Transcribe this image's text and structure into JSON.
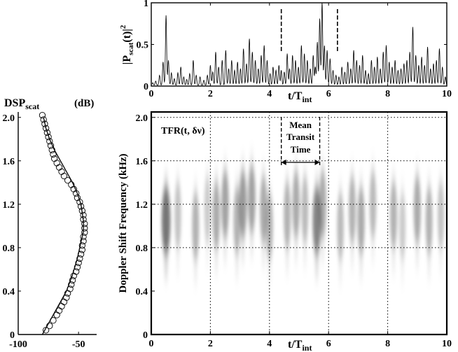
{
  "chart_data": [
    {
      "id": "power_trace",
      "type": "line",
      "ylabel_main": "|P",
      "ylabel_sub": "scat",
      "ylabel_tail": "(t)|",
      "ylabel_sup": "2",
      "xlabel_main": "t/T",
      "xlabel_sub": "int",
      "xlim": [
        0,
        10
      ],
      "ylim": [
        0,
        1
      ],
      "xticks": [
        "0",
        "2",
        "4",
        "6",
        "8",
        "10"
      ],
      "yticks": [
        "0",
        "0.5",
        "1"
      ],
      "markers_x": [
        4.4,
        6.3
      ],
      "peaks": [
        [
          0.05,
          0.03
        ],
        [
          0.15,
          0.05
        ],
        [
          0.28,
          0.12
        ],
        [
          0.4,
          0.28
        ],
        [
          0.5,
          0.84
        ],
        [
          0.58,
          0.3
        ],
        [
          0.68,
          0.15
        ],
        [
          0.78,
          0.08
        ],
        [
          0.9,
          0.15
        ],
        [
          1.0,
          0.22
        ],
        [
          1.1,
          0.1
        ],
        [
          1.2,
          0.07
        ],
        [
          1.3,
          0.14
        ],
        [
          1.42,
          0.3
        ],
        [
          1.52,
          0.12
        ],
        [
          1.65,
          0.1
        ],
        [
          1.78,
          0.06
        ],
        [
          1.9,
          0.12
        ],
        [
          2.0,
          0.24
        ],
        [
          2.08,
          0.16
        ],
        [
          2.18,
          0.4
        ],
        [
          2.28,
          0.22
        ],
        [
          2.4,
          0.3
        ],
        [
          2.52,
          0.42
        ],
        [
          2.62,
          0.2
        ],
        [
          2.72,
          0.3
        ],
        [
          2.82,
          0.18
        ],
        [
          2.92,
          0.28
        ],
        [
          3.02,
          0.2
        ],
        [
          3.12,
          0.44
        ],
        [
          3.22,
          0.26
        ],
        [
          3.32,
          0.56
        ],
        [
          3.42,
          0.4
        ],
        [
          3.52,
          0.3
        ],
        [
          3.62,
          0.2
        ],
        [
          3.72,
          0.36
        ],
        [
          3.82,
          0.48
        ],
        [
          3.92,
          0.3
        ],
        [
          4.02,
          0.14
        ],
        [
          4.12,
          0.22
        ],
        [
          4.22,
          0.18
        ],
        [
          4.32,
          0.24
        ],
        [
          4.4,
          0.18
        ],
        [
          4.5,
          0.16
        ],
        [
          4.6,
          0.38
        ],
        [
          4.68,
          0.2
        ],
        [
          4.78,
          0.36
        ],
        [
          4.88,
          0.3
        ],
        [
          4.98,
          0.22
        ],
        [
          5.08,
          0.48
        ],
        [
          5.18,
          0.38
        ],
        [
          5.28,
          0.3
        ],
        [
          5.38,
          0.2
        ],
        [
          5.48,
          0.36
        ],
        [
          5.55,
          0.22
        ],
        [
          5.62,
          0.52
        ],
        [
          5.7,
          0.8
        ],
        [
          5.78,
          1.0
        ],
        [
          5.86,
          0.48
        ],
        [
          5.95,
          0.42
        ],
        [
          6.05,
          0.32
        ],
        [
          6.15,
          0.18
        ],
        [
          6.25,
          0.12
        ],
        [
          6.35,
          0.1
        ],
        [
          6.45,
          0.22
        ],
        [
          6.55,
          0.16
        ],
        [
          6.65,
          0.28
        ],
        [
          6.75,
          0.2
        ],
        [
          6.85,
          0.42
        ],
        [
          6.95,
          0.3
        ],
        [
          7.05,
          0.24
        ],
        [
          7.15,
          0.36
        ],
        [
          7.25,
          0.18
        ],
        [
          7.35,
          0.14
        ],
        [
          7.45,
          0.3
        ],
        [
          7.55,
          0.22
        ],
        [
          7.65,
          0.34
        ],
        [
          7.75,
          0.2
        ],
        [
          7.85,
          0.4
        ],
        [
          7.95,
          0.48
        ],
        [
          8.05,
          0.28
        ],
        [
          8.15,
          0.22
        ],
        [
          8.25,
          0.3
        ],
        [
          8.35,
          0.18
        ],
        [
          8.45,
          0.2
        ],
        [
          8.55,
          0.26
        ],
        [
          8.65,
          0.3
        ],
        [
          8.75,
          0.4
        ],
        [
          8.85,
          0.7
        ],
        [
          8.95,
          0.36
        ],
        [
          9.05,
          0.24
        ],
        [
          9.15,
          0.34
        ],
        [
          9.25,
          0.24
        ],
        [
          9.35,
          0.46
        ],
        [
          9.45,
          0.2
        ],
        [
          9.55,
          0.26
        ],
        [
          9.65,
          0.3
        ],
        [
          9.75,
          0.44
        ],
        [
          9.85,
          0.22
        ],
        [
          9.95,
          0.1
        ]
      ]
    },
    {
      "id": "doppler_spectrum",
      "type": "line",
      "title_main": "DSP",
      "title_sub": "scat",
      "title_unit": "(dB)",
      "xlim": [
        -100,
        -35
      ],
      "ylim": [
        0,
        2.05
      ],
      "xticks": [
        "-100",
        "-50"
      ],
      "xtick_values": [
        -100,
        -50
      ],
      "yticks": [
        "0",
        "0.4",
        "0.8",
        "1.2",
        "1.6",
        "2.0"
      ],
      "ytick_values": [
        0,
        0.4,
        0.8,
        1.2,
        1.6,
        2.0
      ],
      "fit_curve": [
        [
          -80,
          0.0
        ],
        [
          -75,
          0.1
        ],
        [
          -70,
          0.2
        ],
        [
          -65,
          0.3
        ],
        [
          -60,
          0.4
        ],
        [
          -55,
          0.55
        ],
        [
          -51,
          0.7
        ],
        [
          -48,
          0.85
        ],
        [
          -46,
          0.95
        ],
        [
          -46,
          1.05
        ],
        [
          -48,
          1.2
        ],
        [
          -51,
          1.3
        ],
        [
          -55,
          1.4
        ],
        [
          -60,
          1.5
        ],
        [
          -65,
          1.6
        ],
        [
          -70,
          1.7
        ],
        [
          -74,
          1.8
        ],
        [
          -77,
          1.9
        ],
        [
          -79,
          2.0
        ]
      ],
      "points": [
        [
          -77,
          0.04
        ],
        [
          -74,
          0.08
        ],
        [
          -71,
          0.13
        ],
        [
          -68,
          0.18
        ],
        [
          -66,
          0.22
        ],
        [
          -64,
          0.26
        ],
        [
          -62,
          0.3
        ],
        [
          -60,
          0.34
        ],
        [
          -59,
          0.38
        ],
        [
          -57,
          0.42
        ],
        [
          -56,
          0.46
        ],
        [
          -55,
          0.5
        ],
        [
          -54,
          0.54
        ],
        [
          -52,
          0.58
        ],
        [
          -51,
          0.62
        ],
        [
          -50,
          0.66
        ],
        [
          -49,
          0.7
        ],
        [
          -48,
          0.74
        ],
        [
          -47,
          0.78
        ],
        [
          -47,
          0.82
        ],
        [
          -46,
          0.86
        ],
        [
          -46,
          0.9
        ],
        [
          -45,
          0.94
        ],
        [
          -45,
          0.98
        ],
        [
          -45,
          1.02
        ],
        [
          -46,
          1.06
        ],
        [
          -46,
          1.1
        ],
        [
          -47,
          1.14
        ],
        [
          -48,
          1.18
        ],
        [
          -49,
          1.22
        ],
        [
          -51,
          1.26
        ],
        [
          -52,
          1.3
        ],
        [
          -54,
          1.34
        ],
        [
          -56,
          1.38
        ],
        [
          -59,
          1.42
        ],
        [
          -62,
          1.46
        ],
        [
          -64,
          1.5
        ],
        [
          -66,
          1.54
        ],
        [
          -68,
          1.58
        ],
        [
          -70,
          1.62
        ],
        [
          -71,
          1.66
        ],
        [
          -72,
          1.7
        ],
        [
          -73,
          1.74
        ],
        [
          -74,
          1.78
        ],
        [
          -75,
          1.82
        ],
        [
          -76,
          1.86
        ],
        [
          -77,
          1.9
        ],
        [
          -78,
          1.94
        ],
        [
          -79,
          1.98
        ],
        [
          -80,
          2.02
        ]
      ]
    },
    {
      "id": "tfr_map",
      "type": "heatmap",
      "ylabel": "Doppler Shift Frequency (kHz)",
      "xlabel_main": "t/T",
      "xlabel_sub": "int",
      "inset_label": "TFR(t, δν)",
      "annotation": [
        "Mean",
        "Transit",
        "Time"
      ],
      "annotation_span": [
        4.4,
        5.7
      ],
      "xlim": [
        0,
        10
      ],
      "ylim": [
        0,
        2.05
      ],
      "xticks": [
        "0",
        "2",
        "4",
        "6",
        "8",
        "10"
      ],
      "xtick_values": [
        0,
        2,
        4,
        6,
        8,
        10
      ],
      "yticks": [
        "0",
        "0.4",
        "0.8",
        "1.2",
        "1.6",
        "2.0"
      ],
      "ytick_values": [
        0,
        0.4,
        0.8,
        1.2,
        1.6,
        2.0
      ],
      "grid_x": [
        2,
        4,
        6,
        8
      ],
      "grid_y": [
        0.8,
        1.2,
        1.6,
        2.0
      ],
      "blobs": [
        [
          0.5,
          1.05,
          0.85
        ],
        [
          0.9,
          1.1,
          0.35
        ],
        [
          1.5,
          1.0,
          0.45
        ],
        [
          1.9,
          1.15,
          0.3
        ],
        [
          2.2,
          1.1,
          0.5
        ],
        [
          2.5,
          1.2,
          0.55
        ],
        [
          2.9,
          1.05,
          0.45
        ],
        [
          3.1,
          1.2,
          0.6
        ],
        [
          3.4,
          1.25,
          0.55
        ],
        [
          3.8,
          1.15,
          0.5
        ],
        [
          4.0,
          1.0,
          0.45
        ],
        [
          4.6,
          1.1,
          0.45
        ],
        [
          4.9,
          1.2,
          0.5
        ],
        [
          5.2,
          1.15,
          0.4
        ],
        [
          5.6,
          1.05,
          0.75
        ],
        [
          5.8,
          1.2,
          0.5
        ],
        [
          6.4,
          1.0,
          0.4
        ],
        [
          6.8,
          1.15,
          0.45
        ],
        [
          7.1,
          1.05,
          0.5
        ],
        [
          7.5,
          1.2,
          0.4
        ],
        [
          8.2,
          1.1,
          0.45
        ],
        [
          8.5,
          1.0,
          0.3
        ],
        [
          9.0,
          1.15,
          0.5
        ],
        [
          9.4,
          1.05,
          0.45
        ],
        [
          9.8,
          1.1,
          0.35
        ]
      ]
    }
  ]
}
